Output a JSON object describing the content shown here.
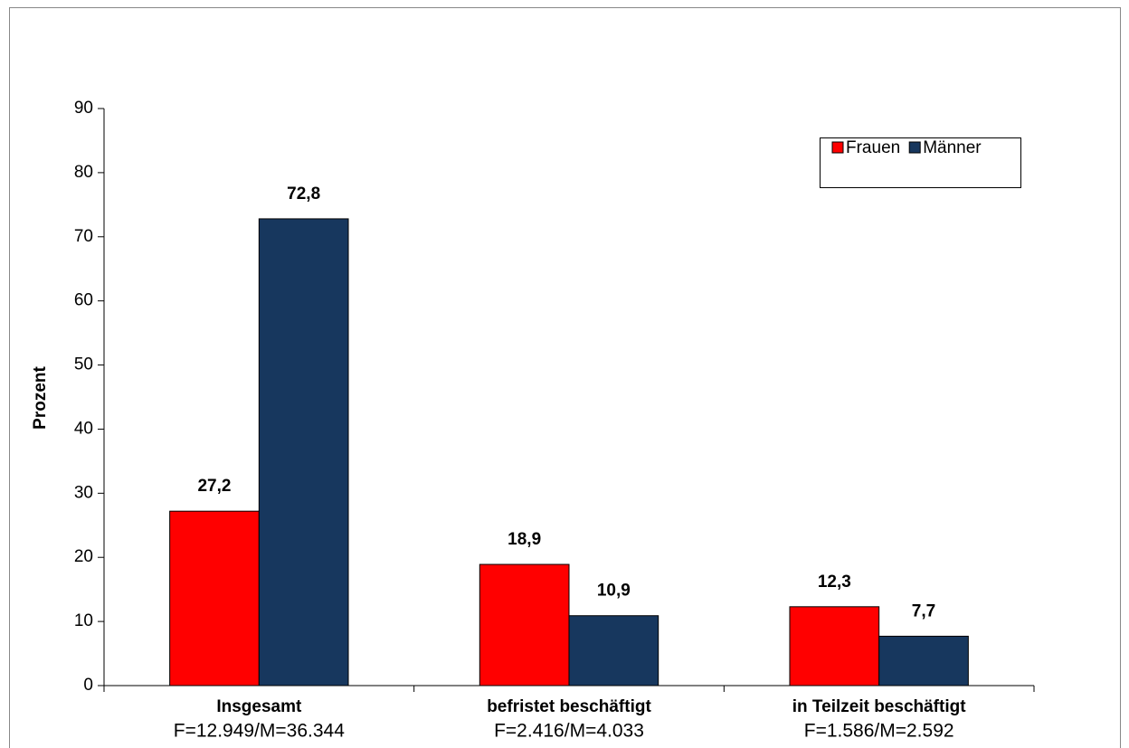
{
  "chart_data": {
    "type": "bar",
    "y_label": "Prozent",
    "categories": [
      "Insgesamt",
      "befristet beschäftigt",
      "in Teilzeit beschäftigt"
    ],
    "category_notes": [
      "F=12.949/M=36.344",
      "F=2.416/M=4.033",
      "F=1.586/M=2.592"
    ],
    "series": [
      {
        "name": "Frauen",
        "color": "#ff0000",
        "values": [
          27.2,
          18.9,
          12.3
        ],
        "value_labels": [
          "27,2",
          "18,9",
          "12,3"
        ]
      },
      {
        "name": "Männer",
        "color": "#17375e",
        "values": [
          72.8,
          10.9,
          7.7
        ],
        "value_labels": [
          "72,8",
          "10,9",
          "7,7"
        ]
      }
    ],
    "ylim": [
      0,
      90
    ],
    "yticks": [
      0,
      10,
      20,
      30,
      40,
      50,
      60,
      70,
      80,
      90
    ],
    "legend": "top-right"
  }
}
